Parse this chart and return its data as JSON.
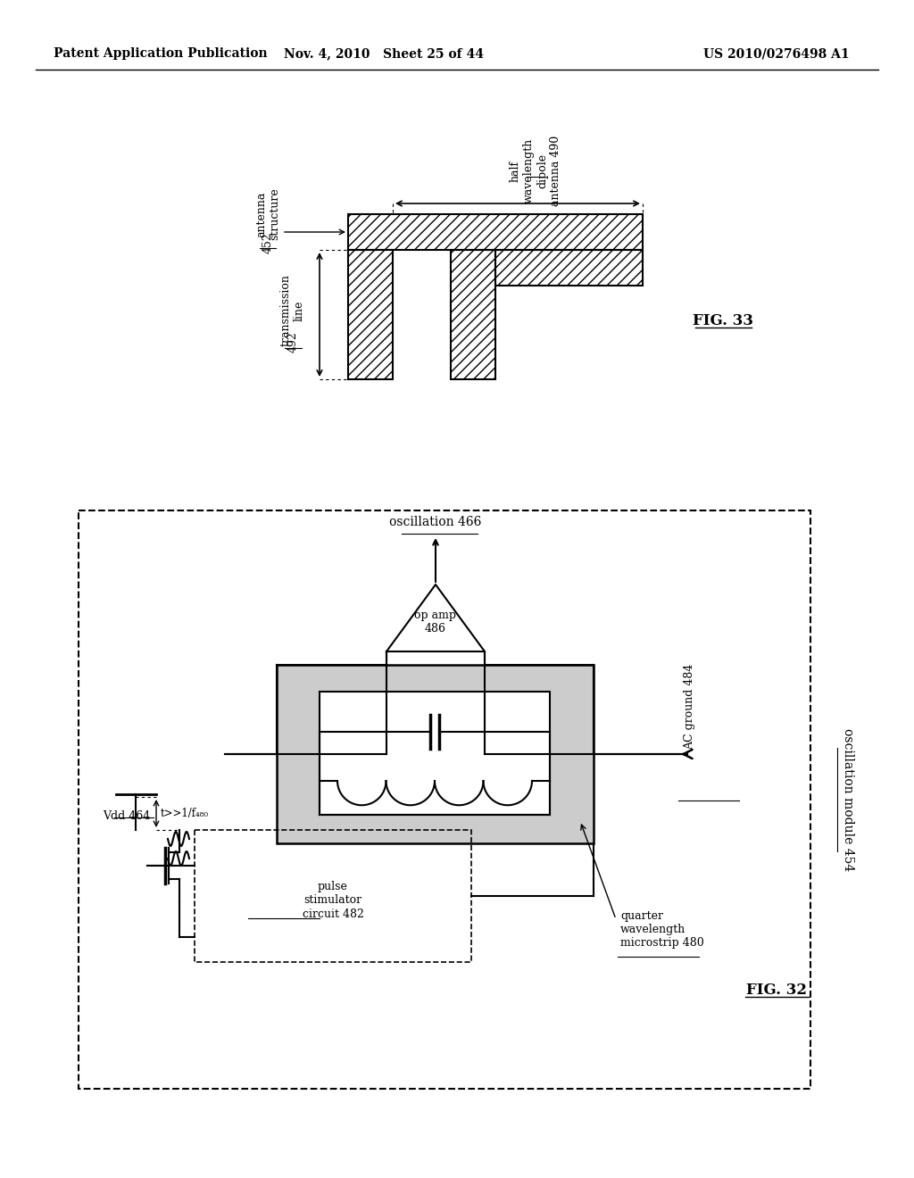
{
  "page_header": {
    "left": "Patent Application Publication",
    "center": "Nov. 4, 2010   Sheet 25 of 44",
    "right": "US 2010/0276498 A1"
  },
  "fig33": {
    "label": "FIG. 33",
    "antenna_structure_label": "antenna\nstructure 452",
    "half_wavelength_label": "half\nwavelength\ndipole\nantenna 490",
    "transmission_line_label": "transmission\nline 492",
    "hatch_pattern": "///"
  },
  "fig32": {
    "label": "FIG. 32",
    "oscillation_label": "oscillation 466",
    "op_amp_label": "op amp\n486",
    "oscillation_module_label": "oscillation module 454",
    "quarter_wavelength_label": "quarter\nwavelength\nmicrostrip 480",
    "pulse_stimulator_label": "pulse\nstimulator\ncircuit 482",
    "vdd_label": "Vdd 464",
    "ac_ground_label": "AC ground 484",
    "t_label": "t>>1/f₄₈₀",
    "hatch_pattern": "///"
  }
}
